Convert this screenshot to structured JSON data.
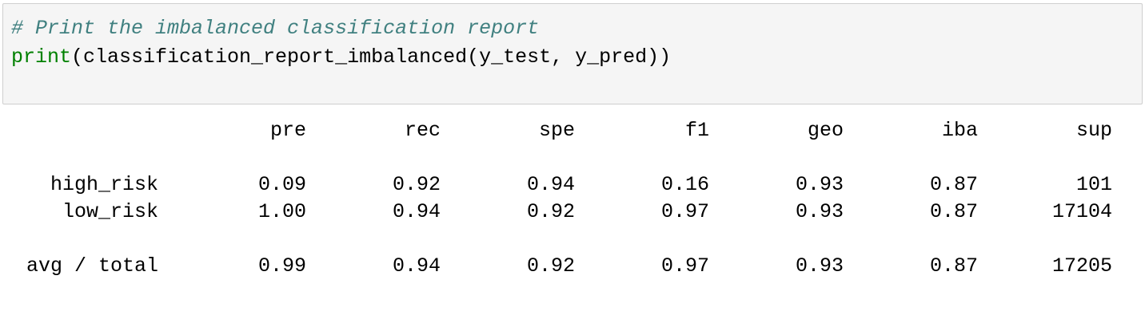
{
  "code_cell": {
    "comment": "# Print the imbalanced classification report",
    "call_builtin": "print",
    "call_rest": "(classification_report_imbalanced(y_test, y_pred))"
  },
  "report": {
    "headers": [
      "pre",
      "rec",
      "spe",
      "f1",
      "geo",
      "iba",
      "sup"
    ],
    "rows": [
      {
        "label": "high_risk",
        "values": [
          "0.09",
          "0.92",
          "0.94",
          "0.16",
          "0.93",
          "0.87",
          "101"
        ]
      },
      {
        "label": "low_risk",
        "values": [
          "1.00",
          "0.94",
          "0.92",
          "0.97",
          "0.93",
          "0.87",
          "17104"
        ]
      }
    ],
    "total": {
      "label": "avg / total",
      "values": [
        "0.99",
        "0.94",
        "0.92",
        "0.97",
        "0.93",
        "0.87",
        "17205"
      ]
    }
  },
  "colors": {
    "comment": "#408080",
    "builtin": "#008000",
    "cell_background": "#f5f5f5",
    "cell_border": "#cfcfcf"
  }
}
